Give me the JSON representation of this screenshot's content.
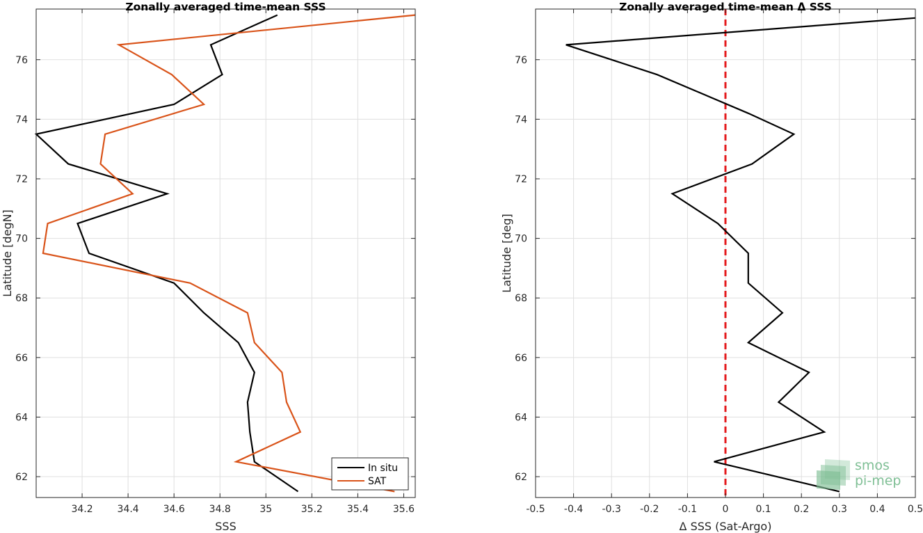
{
  "chart_data": [
    {
      "type": "line",
      "title": "Zonally averaged time-mean SSS",
      "xlabel": "SSS",
      "ylabel": "Latitude [degN]",
      "xlim": [
        34.0,
        35.65
      ],
      "ylim": [
        61.3,
        77.7
      ],
      "xticks": [
        34.2,
        34.4,
        34.6,
        34.8,
        35,
        35.2,
        35.4,
        35.6
      ],
      "xtick_labels": [
        "34.2",
        "34.4",
        "34.6",
        "34.8",
        "35",
        "35.2",
        "35.4",
        "35.6"
      ],
      "yticks": [
        62,
        64,
        66,
        68,
        70,
        72,
        74,
        76
      ],
      "ytick_labels": [
        "62",
        "64",
        "66",
        "68",
        "70",
        "72",
        "74",
        "76"
      ],
      "grid": true,
      "legend": "bottom-right",
      "series": [
        {
          "name": "In situ",
          "color": "#000000",
          "points": [
            [
              35.14,
              61.5
            ],
            [
              34.95,
              62.5
            ],
            [
              34.93,
              63.5
            ],
            [
              34.92,
              64.5
            ],
            [
              34.95,
              65.5
            ],
            [
              34.88,
              66.5
            ],
            [
              34.73,
              67.5
            ],
            [
              34.6,
              68.5
            ],
            [
              34.23,
              69.5
            ],
            [
              34.18,
              70.5
            ],
            [
              34.57,
              71.5
            ],
            [
              34.14,
              72.5
            ],
            [
              34.0,
              73.5
            ],
            [
              34.6,
              74.5
            ],
            [
              34.81,
              75.5
            ],
            [
              34.76,
              76.5
            ],
            [
              35.05,
              77.5
            ]
          ]
        },
        {
          "name": "SAT",
          "color": "#d95319",
          "points": [
            [
              35.56,
              61.5
            ],
            [
              34.87,
              62.5
            ],
            [
              35.15,
              63.5
            ],
            [
              35.09,
              64.5
            ],
            [
              35.07,
              65.5
            ],
            [
              34.95,
              66.5
            ],
            [
              34.92,
              67.5
            ],
            [
              34.67,
              68.5
            ],
            [
              34.03,
              69.5
            ],
            [
              34.05,
              70.5
            ],
            [
              34.42,
              71.5
            ],
            [
              34.28,
              72.5
            ],
            [
              34.3,
              73.5
            ],
            [
              34.73,
              74.5
            ],
            [
              34.59,
              75.5
            ],
            [
              34.36,
              76.5
            ],
            [
              35.65,
              77.5
            ]
          ]
        }
      ]
    },
    {
      "type": "line",
      "title": "Zonally averaged time-mean Δ SSS",
      "xlabel": "Δ SSS (Sat-Argo)",
      "ylabel": "Latitude [deg]",
      "xlim": [
        -0.5,
        0.5
      ],
      "ylim": [
        61.3,
        77.7
      ],
      "xticks": [
        -0.5,
        -0.4,
        -0.3,
        -0.2,
        -0.1,
        0,
        0.1,
        0.2,
        0.3,
        0.4,
        0.5
      ],
      "xtick_labels": [
        "-0.5",
        "-0.4",
        "-0.3",
        "-0.2",
        "-0.1",
        "0",
        "0.1",
        "0.2",
        "0.3",
        "0.4",
        "0.5"
      ],
      "yticks": [
        62,
        64,
        66,
        68,
        70,
        72,
        74,
        76
      ],
      "ytick_labels": [
        "62",
        "64",
        "66",
        "68",
        "70",
        "72",
        "74",
        "76"
      ],
      "grid": true,
      "reference_line": {
        "x": 0,
        "color": "#e41a1c",
        "style": "dashed"
      },
      "series": [
        {
          "color": "#000000",
          "points": [
            [
              0.3,
              61.5
            ],
            [
              -0.03,
              62.5
            ],
            [
              0.26,
              63.5
            ],
            [
              0.14,
              64.5
            ],
            [
              0.22,
              65.5
            ],
            [
              0.06,
              66.5
            ],
            [
              0.15,
              67.5
            ],
            [
              0.06,
              68.5
            ],
            [
              0.06,
              69.5
            ],
            [
              -0.02,
              70.5
            ],
            [
              -0.14,
              71.5
            ],
            [
              0.07,
              72.5
            ],
            [
              0.18,
              73.5
            ],
            [
              0.06,
              74.2
            ],
            [
              -0.18,
              75.5
            ],
            [
              -0.42,
              76.5
            ],
            [
              0.5,
              77.4
            ]
          ]
        }
      ]
    }
  ],
  "watermark": {
    "line1": "smos",
    "line2": "pi-mep",
    "color": "#7fbf95"
  }
}
